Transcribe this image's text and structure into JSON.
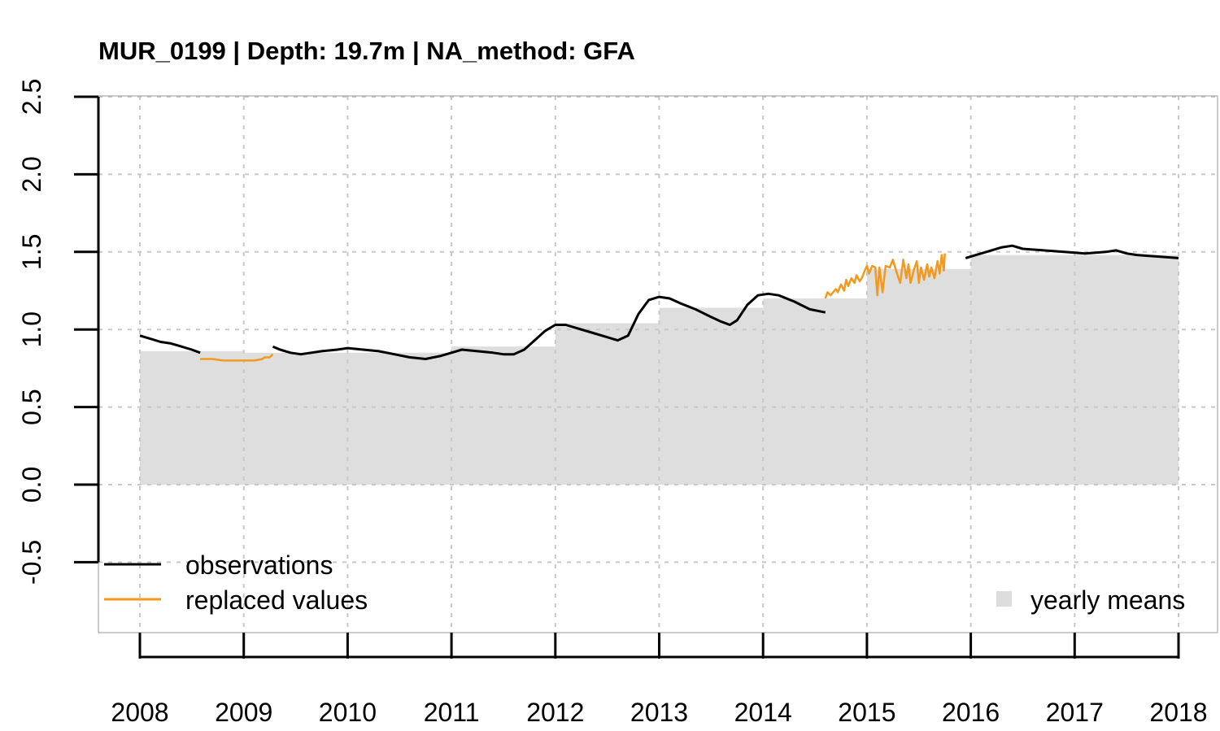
{
  "chart_data": {
    "type": "line",
    "title": "MUR_0199 | Depth: 19.7m | NA_method: GFA",
    "xlabel": "",
    "ylabel": "",
    "xlim": [
      2008,
      2018
    ],
    "ylim": [
      -0.9,
      2.5
    ],
    "x_ticks": [
      "2008",
      "2009",
      "2010",
      "2011",
      "2012",
      "2013",
      "2014",
      "2015",
      "2016",
      "2017",
      "2018"
    ],
    "y_ticks": [
      "-0.5",
      "0.0",
      "0.5",
      "1.0",
      "1.5",
      "2.0",
      "2.5"
    ],
    "grid": true,
    "legend": [
      {
        "label": "observations",
        "color": "#000000",
        "kind": "line",
        "placement": "bottom-left"
      },
      {
        "label": "replaced values",
        "color": "#f39a1e",
        "kind": "line",
        "placement": "bottom-left"
      },
      {
        "label": "yearly means",
        "color": "#dddddd",
        "kind": "box",
        "placement": "bottom-right"
      }
    ],
    "yearly_means": [
      {
        "start": 2008.0,
        "end": 2009.0,
        "value": 0.86
      },
      {
        "start": 2009.0,
        "end": 2010.0,
        "value": 0.85
      },
      {
        "start": 2010.0,
        "end": 2011.0,
        "value": 0.85
      },
      {
        "start": 2011.0,
        "end": 2012.0,
        "value": 0.89
      },
      {
        "start": 2012.0,
        "end": 2013.0,
        "value": 1.04
      },
      {
        "start": 2013.0,
        "end": 2014.0,
        "value": 1.14
      },
      {
        "start": 2014.0,
        "end": 2015.0,
        "value": 1.2
      },
      {
        "start": 2015.0,
        "end": 2016.0,
        "value": 1.39
      },
      {
        "start": 2016.0,
        "end": 2018.0,
        "value": 1.48
      }
    ],
    "series": [
      {
        "name": "observations",
        "color": "#000000",
        "segments": [
          [
            [
              2008.0,
              0.96
            ],
            [
              2008.1,
              0.94
            ],
            [
              2008.2,
              0.92
            ],
            [
              2008.3,
              0.91
            ],
            [
              2008.4,
              0.89
            ],
            [
              2008.5,
              0.87
            ],
            [
              2008.58,
              0.85
            ]
          ],
          [
            [
              2009.28,
              0.89
            ],
            [
              2009.35,
              0.87
            ],
            [
              2009.45,
              0.85
            ],
            [
              2009.55,
              0.84
            ],
            [
              2009.65,
              0.85
            ],
            [
              2009.75,
              0.86
            ],
            [
              2009.9,
              0.87
            ],
            [
              2010.0,
              0.88
            ],
            [
              2010.15,
              0.87
            ],
            [
              2010.3,
              0.86
            ],
            [
              2010.45,
              0.84
            ],
            [
              2010.6,
              0.82
            ],
            [
              2010.75,
              0.81
            ],
            [
              2010.9,
              0.83
            ],
            [
              2011.0,
              0.85
            ],
            [
              2011.1,
              0.87
            ],
            [
              2011.25,
              0.86
            ],
            [
              2011.4,
              0.85
            ],
            [
              2011.5,
              0.84
            ],
            [
              2011.6,
              0.84
            ],
            [
              2011.7,
              0.87
            ],
            [
              2011.8,
              0.93
            ],
            [
              2011.9,
              0.99
            ],
            [
              2012.0,
              1.03
            ],
            [
              2012.1,
              1.03
            ],
            [
              2012.2,
              1.01
            ],
            [
              2012.35,
              0.98
            ],
            [
              2012.5,
              0.95
            ],
            [
              2012.6,
              0.93
            ],
            [
              2012.7,
              0.96
            ],
            [
              2012.8,
              1.1
            ],
            [
              2012.9,
              1.19
            ],
            [
              2013.0,
              1.21
            ],
            [
              2013.1,
              1.2
            ],
            [
              2013.2,
              1.17
            ],
            [
              2013.35,
              1.13
            ],
            [
              2013.5,
              1.08
            ],
            [
              2013.6,
              1.05
            ],
            [
              2013.68,
              1.03
            ],
            [
              2013.75,
              1.06
            ],
            [
              2013.85,
              1.16
            ],
            [
              2013.95,
              1.22
            ],
            [
              2014.05,
              1.23
            ],
            [
              2014.15,
              1.22
            ],
            [
              2014.3,
              1.18
            ],
            [
              2014.45,
              1.13
            ],
            [
              2014.6,
              1.11
            ]
          ],
          [
            [
              2015.95,
              1.46
            ],
            [
              2016.05,
              1.48
            ],
            [
              2016.15,
              1.5
            ],
            [
              2016.3,
              1.53
            ],
            [
              2016.4,
              1.54
            ],
            [
              2016.5,
              1.52
            ],
            [
              2016.7,
              1.51
            ],
            [
              2016.9,
              1.5
            ],
            [
              2017.1,
              1.49
            ],
            [
              2017.3,
              1.5
            ],
            [
              2017.4,
              1.51
            ],
            [
              2017.5,
              1.49
            ],
            [
              2017.6,
              1.48
            ],
            [
              2017.8,
              1.47
            ],
            [
              2018.0,
              1.46
            ]
          ]
        ]
      },
      {
        "name": "replaced values",
        "color": "#f39a1e",
        "segments": [
          [
            [
              2008.58,
              0.81
            ],
            [
              2008.7,
              0.81
            ],
            [
              2008.8,
              0.8
            ],
            [
              2008.9,
              0.8
            ],
            [
              2009.0,
              0.8
            ],
            [
              2009.1,
              0.8
            ],
            [
              2009.18,
              0.81
            ],
            [
              2009.2,
              0.82
            ],
            [
              2009.25,
              0.82
            ],
            [
              2009.28,
              0.84
            ]
          ],
          [
            [
              2014.6,
              1.2
            ],
            [
              2014.62,
              1.24
            ],
            [
              2014.65,
              1.22
            ],
            [
              2014.7,
              1.26
            ],
            [
              2014.72,
              1.24
            ],
            [
              2014.75,
              1.29
            ],
            [
              2014.78,
              1.25
            ],
            [
              2014.8,
              1.32
            ],
            [
              2014.82,
              1.28
            ],
            [
              2014.85,
              1.33
            ],
            [
              2014.88,
              1.3
            ],
            [
              2014.9,
              1.35
            ],
            [
              2014.93,
              1.31
            ],
            [
              2014.95,
              1.33
            ],
            [
              2014.98,
              1.38
            ],
            [
              2015.0,
              1.41
            ],
            [
              2015.02,
              1.36
            ],
            [
              2015.05,
              1.41
            ],
            [
              2015.08,
              1.4
            ],
            [
              2015.1,
              1.22
            ],
            [
              2015.12,
              1.4
            ],
            [
              2015.15,
              1.24
            ],
            [
              2015.18,
              1.41
            ],
            [
              2015.22,
              1.4
            ],
            [
              2015.25,
              1.45
            ],
            [
              2015.28,
              1.38
            ],
            [
              2015.32,
              1.3
            ],
            [
              2015.35,
              1.45
            ],
            [
              2015.38,
              1.33
            ],
            [
              2015.4,
              1.42
            ],
            [
              2015.42,
              1.3
            ],
            [
              2015.45,
              1.38
            ],
            [
              2015.48,
              1.44
            ],
            [
              2015.5,
              1.3
            ],
            [
              2015.52,
              1.4
            ],
            [
              2015.55,
              1.32
            ],
            [
              2015.58,
              1.42
            ],
            [
              2015.6,
              1.34
            ],
            [
              2015.62,
              1.4
            ],
            [
              2015.65,
              1.33
            ],
            [
              2015.68,
              1.44
            ],
            [
              2015.7,
              1.36
            ],
            [
              2015.72,
              1.48
            ],
            [
              2015.74,
              1.38
            ],
            [
              2015.75,
              1.49
            ]
          ]
        ]
      }
    ]
  }
}
